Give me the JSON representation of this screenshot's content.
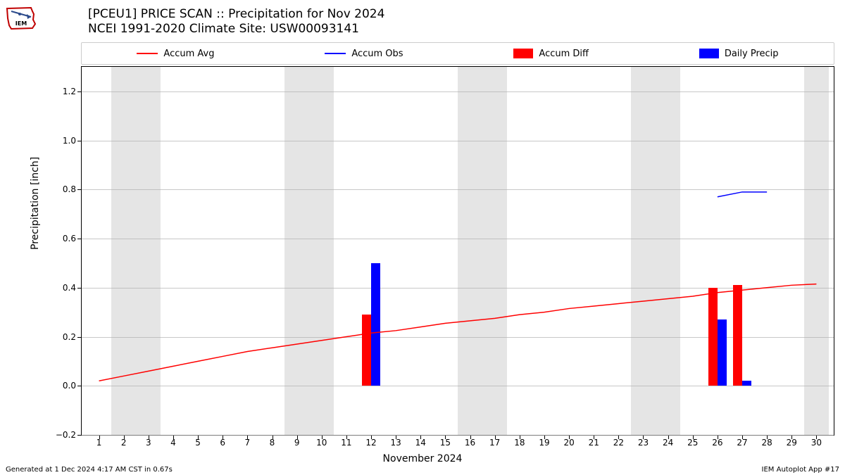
{
  "title_line1": "[PCEU1] PRICE SCAN :: Precipitation for Nov 2024",
  "title_line2": "NCEI 1991-2020 Climate Site: USW00093141",
  "ylabel": "Precipitation [inch]",
  "xlabel": "November 2024",
  "footer_left": "Generated at 1 Dec 2024 4:17 AM CST in 0.67s",
  "footer_right": "IEM Autoplot App #17",
  "legend": {
    "accum_avg": {
      "label": "Accum Avg",
      "color": "#ff0000",
      "type": "line"
    },
    "accum_obs": {
      "label": "Accum Obs",
      "color": "#0000ff",
      "type": "line"
    },
    "accum_diff": {
      "label": "Accum Diff",
      "color": "#ff0000",
      "type": "patch"
    },
    "daily_precip": {
      "label": "Daily Precip",
      "color": "#0000ff",
      "type": "patch"
    }
  },
  "chart": {
    "type": "mixed",
    "xlim": [
      0.3,
      30.7
    ],
    "ylim": [
      -0.2,
      1.3
    ],
    "x_ticks": [
      1,
      2,
      3,
      4,
      5,
      6,
      7,
      8,
      9,
      10,
      11,
      12,
      13,
      14,
      15,
      16,
      17,
      18,
      19,
      20,
      21,
      22,
      23,
      24,
      25,
      26,
      27,
      28,
      29,
      30
    ],
    "y_ticks": [
      -0.2,
      0.0,
      0.2,
      0.4,
      0.6,
      0.8,
      1.0,
      1.2
    ],
    "y_tick_labels": [
      "−0.2",
      "0.0",
      "0.2",
      "0.4",
      "0.6",
      "0.8",
      "1.0",
      "1.2"
    ],
    "grid_color": "#b0b0b0",
    "background_color": "#ffffff",
    "weekend_band_color": "#e5e5e5",
    "weekend_bands": [
      [
        1.5,
        3.5
      ],
      [
        8.5,
        10.5
      ],
      [
        15.5,
        17.5
      ],
      [
        22.5,
        24.5
      ],
      [
        29.5,
        30.5
      ]
    ],
    "accum_avg_line": {
      "color": "#ff0000",
      "width": 1.5,
      "points": [
        [
          1,
          0.02
        ],
        [
          2,
          0.04
        ],
        [
          3,
          0.06
        ],
        [
          4,
          0.08
        ],
        [
          5,
          0.1
        ],
        [
          6,
          0.12
        ],
        [
          7,
          0.14
        ],
        [
          8,
          0.155
        ],
        [
          9,
          0.17
        ],
        [
          10,
          0.185
        ],
        [
          11,
          0.2
        ],
        [
          12,
          0.215
        ],
        [
          13,
          0.225
        ],
        [
          14,
          0.24
        ],
        [
          15,
          0.255
        ],
        [
          16,
          0.265
        ],
        [
          17,
          0.275
        ],
        [
          18,
          0.29
        ],
        [
          19,
          0.3
        ],
        [
          20,
          0.315
        ],
        [
          21,
          0.325
        ],
        [
          22,
          0.335
        ],
        [
          23,
          0.345
        ],
        [
          24,
          0.355
        ],
        [
          25,
          0.365
        ],
        [
          26,
          0.38
        ],
        [
          27,
          0.39
        ],
        [
          28,
          0.4
        ],
        [
          29,
          0.41
        ],
        [
          30,
          0.415
        ]
      ]
    },
    "accum_obs_line": {
      "color": "#0000ff",
      "width": 1.5,
      "points": [
        [
          26,
          0.77
        ],
        [
          27,
          0.79
        ],
        [
          28,
          0.79
        ]
      ]
    },
    "red_bars": {
      "color": "#ff0000",
      "width": 0.38,
      "offset": -0.19,
      "data": [
        {
          "x": 12,
          "y": 0.29
        },
        {
          "x": 26,
          "y": 0.4
        },
        {
          "x": 27,
          "y": 0.41
        }
      ]
    },
    "blue_bars": {
      "color": "#0000ff",
      "width": 0.38,
      "offset": 0.19,
      "data": [
        {
          "x": 12,
          "y": 0.5
        },
        {
          "x": 26,
          "y": 0.27
        },
        {
          "x": 27,
          "y": 0.02
        }
      ]
    }
  },
  "logo_colors": {
    "outline": "#c00000",
    "arrow": "#2b4a8b",
    "text": "#000000"
  }
}
